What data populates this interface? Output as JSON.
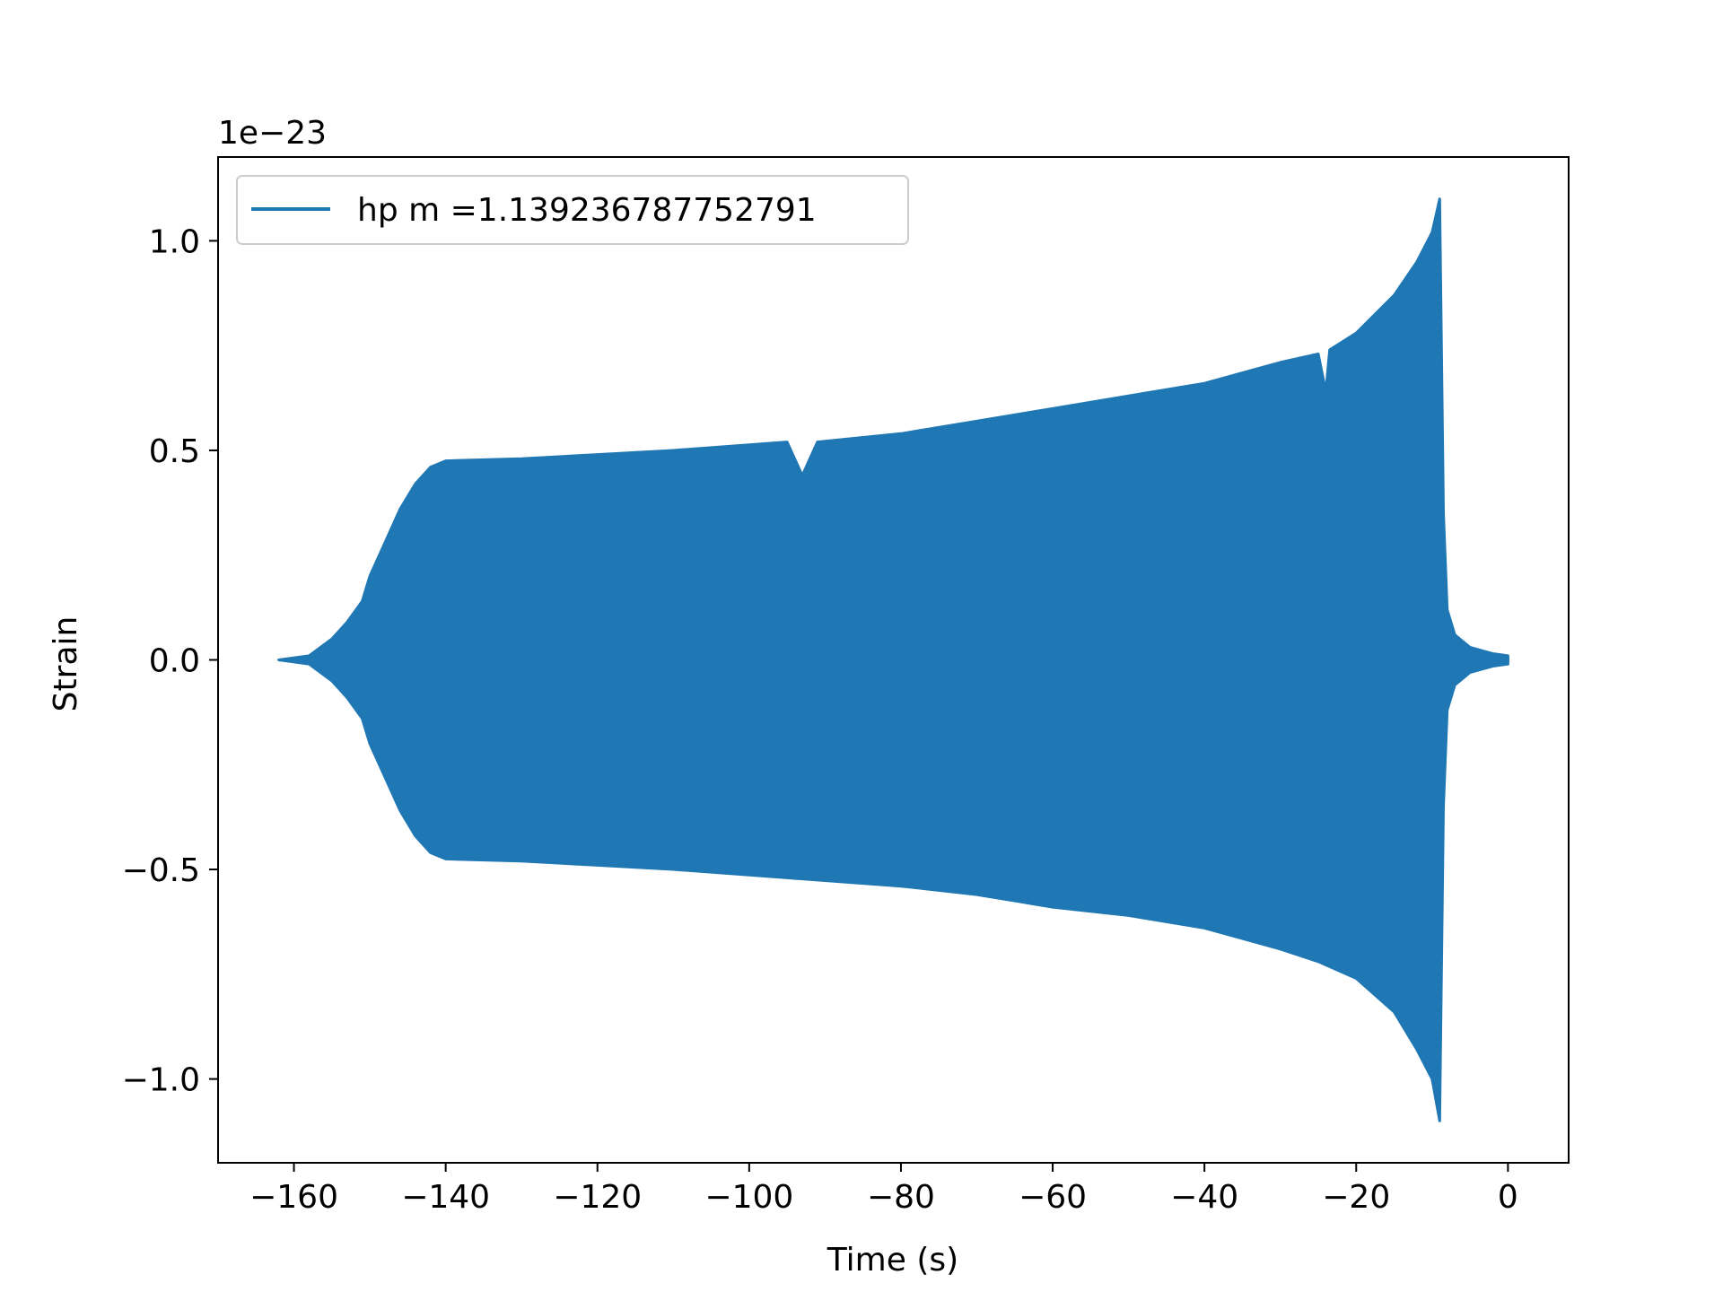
{
  "chart_data": {
    "type": "line",
    "title": "",
    "xlabel": "Time (s)",
    "ylabel": "Strain",
    "y_offset_label": "1e−23",
    "y_scale_factor": 1e-23,
    "xlim": [
      -170,
      8
    ],
    "ylim": [
      -1.2,
      1.2
    ],
    "xticks": [
      -160,
      -140,
      -120,
      -100,
      -80,
      -60,
      -40,
      -20,
      0
    ],
    "xtick_labels": [
      "−160",
      "−140",
      "−120",
      "−100",
      "−80",
      "−60",
      "−40",
      "−20",
      "0"
    ],
    "yticks": [
      1.0,
      0.5,
      0.0,
      -0.5,
      -1.0
    ],
    "ytick_labels": [
      "1.0",
      "0.5",
      "0.0",
      "−0.5",
      "−1.0"
    ],
    "grid": false,
    "legend_position": "upper-left",
    "series": [
      {
        "name": "hp m =1.139236787752791",
        "color": "#1f77b4",
        "render": "dense-oscillation-envelope",
        "upper_envelope": [
          [
            -162,
            0.0
          ],
          [
            -158,
            0.01
          ],
          [
            -155,
            0.05
          ],
          [
            -153,
            0.09
          ],
          [
            -151,
            0.14
          ],
          [
            -150,
            0.2
          ],
          [
            -148,
            0.28
          ],
          [
            -146,
            0.36
          ],
          [
            -144,
            0.42
          ],
          [
            -142,
            0.46
          ],
          [
            -140,
            0.475
          ],
          [
            -130,
            0.48
          ],
          [
            -120,
            0.49
          ],
          [
            -110,
            0.5
          ],
          [
            -95,
            0.52
          ],
          [
            -93,
            0.44
          ],
          [
            -91,
            0.52
          ],
          [
            -80,
            0.54
          ],
          [
            -70,
            0.57
          ],
          [
            -60,
            0.6
          ],
          [
            -50,
            0.63
          ],
          [
            -40,
            0.66
          ],
          [
            -30,
            0.71
          ],
          [
            -25,
            0.73
          ],
          [
            -24,
            0.64
          ],
          [
            -23.5,
            0.74
          ],
          [
            -20,
            0.78
          ],
          [
            -15,
            0.87
          ],
          [
            -12,
            0.95
          ],
          [
            -10,
            1.02
          ],
          [
            -9,
            1.1
          ],
          [
            -8.5,
            0.35
          ],
          [
            -8,
            0.12
          ],
          [
            -7,
            0.06
          ],
          [
            -5,
            0.03
          ],
          [
            -2,
            0.015
          ],
          [
            0,
            0.01
          ]
        ],
        "lower_envelope": [
          [
            -162,
            0.0
          ],
          [
            -158,
            -0.01
          ],
          [
            -155,
            -0.05
          ],
          [
            -153,
            -0.09
          ],
          [
            -151,
            -0.14
          ],
          [
            -150,
            -0.2
          ],
          [
            -148,
            -0.28
          ],
          [
            -146,
            -0.36
          ],
          [
            -144,
            -0.42
          ],
          [
            -142,
            -0.46
          ],
          [
            -140,
            -0.475
          ],
          [
            -130,
            -0.48
          ],
          [
            -120,
            -0.49
          ],
          [
            -110,
            -0.5
          ],
          [
            -95,
            -0.52
          ],
          [
            -80,
            -0.54
          ],
          [
            -70,
            -0.56
          ],
          [
            -60,
            -0.59
          ],
          [
            -50,
            -0.61
          ],
          [
            -40,
            -0.64
          ],
          [
            -30,
            -0.69
          ],
          [
            -25,
            -0.72
          ],
          [
            -20,
            -0.76
          ],
          [
            -15,
            -0.84
          ],
          [
            -12,
            -0.93
          ],
          [
            -10,
            -1.0
          ],
          [
            -9,
            -1.1
          ],
          [
            -8.5,
            -0.35
          ],
          [
            -8,
            -0.12
          ],
          [
            -7,
            -0.06
          ],
          [
            -5,
            -0.03
          ],
          [
            -2,
            -0.015
          ],
          [
            0,
            -0.01
          ]
        ]
      }
    ]
  }
}
